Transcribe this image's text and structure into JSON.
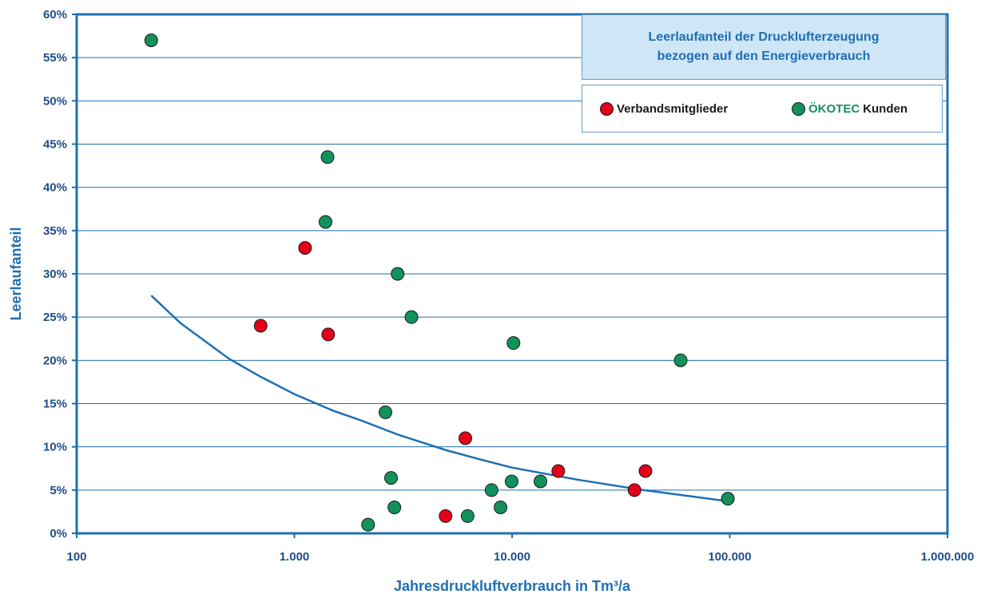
{
  "chart_data": {
    "type": "scatter",
    "title_lines": [
      "Leerlaufanteil der Drucklufterzeugung",
      "bezogen auf den Energieverbrauch"
    ],
    "xlabel": "Jahresdruckluftverbrauch in Tm³/a",
    "ylabel": "Leerlaufanteil",
    "x_scale": "log",
    "xlim": [
      100,
      1000000
    ],
    "ylim": [
      0,
      60
    ],
    "x_ticks": [
      100,
      1000,
      10000,
      100000,
      1000000
    ],
    "x_tick_labels": [
      "100",
      "1.000",
      "10.000",
      "100.000",
      "1.000.000"
    ],
    "y_ticks": [
      0,
      5,
      10,
      15,
      20,
      25,
      30,
      35,
      40,
      45,
      50,
      55,
      60
    ],
    "y_tick_labels": [
      "0%",
      "5%",
      "10%",
      "15%",
      "20%",
      "25%",
      "30%",
      "35%",
      "40%",
      "45%",
      "50%",
      "55%",
      "60%"
    ],
    "grid": "horizontal",
    "legend_position": "top-right",
    "legend": {
      "series1": "Verbandsmitglieder",
      "series2_brand": "ÖKOTEC",
      "series2_rest": "Kunden"
    },
    "series": [
      {
        "name": "Verbandsmitglieder",
        "color": "#e3001b",
        "points": [
          {
            "x": 700,
            "y": 24
          },
          {
            "x": 1120,
            "y": 33
          },
          {
            "x": 1430,
            "y": 23
          },
          {
            "x": 4950,
            "y": 2
          },
          {
            "x": 6100,
            "y": 11
          },
          {
            "x": 16300,
            "y": 7.2
          },
          {
            "x": 36500,
            "y": 5
          },
          {
            "x": 41000,
            "y": 7.2
          }
        ]
      },
      {
        "name": "ÖKOTEC Kunden",
        "color": "#12915d",
        "points": [
          {
            "x": 220,
            "y": 57
          },
          {
            "x": 1390,
            "y": 36
          },
          {
            "x": 1420,
            "y": 43.5
          },
          {
            "x": 2180,
            "y": 1
          },
          {
            "x": 2620,
            "y": 14
          },
          {
            "x": 2780,
            "y": 6.4
          },
          {
            "x": 2880,
            "y": 3
          },
          {
            "x": 2980,
            "y": 30
          },
          {
            "x": 3450,
            "y": 25
          },
          {
            "x": 6250,
            "y": 2
          },
          {
            "x": 8050,
            "y": 5
          },
          {
            "x": 8850,
            "y": 3
          },
          {
            "x": 9950,
            "y": 6
          },
          {
            "x": 10150,
            "y": 22
          },
          {
            "x": 13500,
            "y": 6
          },
          {
            "x": 59500,
            "y": 20
          },
          {
            "x": 98000,
            "y": 4
          }
        ]
      }
    ],
    "trendline": {
      "type": "power",
      "color": "#1f6fb2",
      "points": [
        {
          "x": 220,
          "y": 27.5
        },
        {
          "x": 300,
          "y": 24.3
        },
        {
          "x": 500,
          "y": 20.2
        },
        {
          "x": 700,
          "y": 18.1
        },
        {
          "x": 1000,
          "y": 16.1
        },
        {
          "x": 1500,
          "y": 14.2
        },
        {
          "x": 2000,
          "y": 13.1
        },
        {
          "x": 3000,
          "y": 11.4
        },
        {
          "x": 5000,
          "y": 9.6
        },
        {
          "x": 7000,
          "y": 8.6
        },
        {
          "x": 10000,
          "y": 7.6
        },
        {
          "x": 20000,
          "y": 6.2
        },
        {
          "x": 40000,
          "y": 5.0
        },
        {
          "x": 70000,
          "y": 4.2
        },
        {
          "x": 98000,
          "y": 3.7
        }
      ]
    }
  }
}
